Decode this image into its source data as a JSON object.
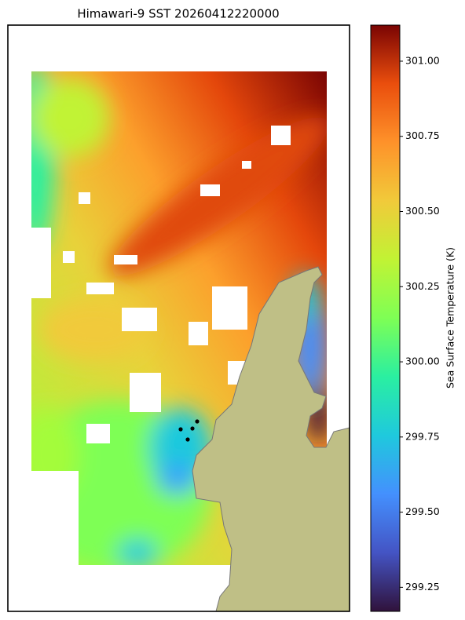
{
  "title": "Himawari-9 SST 20260412220000",
  "colorbar": {
    "label": "Sea Surface Temperature (K)",
    "colormap": "turbo",
    "lim": [
      299.17,
      301.12
    ],
    "ticks": [
      {
        "value": 299.25,
        "label": "299.25"
      },
      {
        "value": 299.5,
        "label": "299.50"
      },
      {
        "value": 299.75,
        "label": "299.75"
      },
      {
        "value": 300,
        "label": "300.00"
      },
      {
        "value": 300.25,
        "label": "300.25"
      },
      {
        "value": 300.5,
        "label": "300.50"
      },
      {
        "value": 300.75,
        "label": "300.75"
      },
      {
        "value": 301,
        "label": "301.00"
      }
    ]
  }
}
